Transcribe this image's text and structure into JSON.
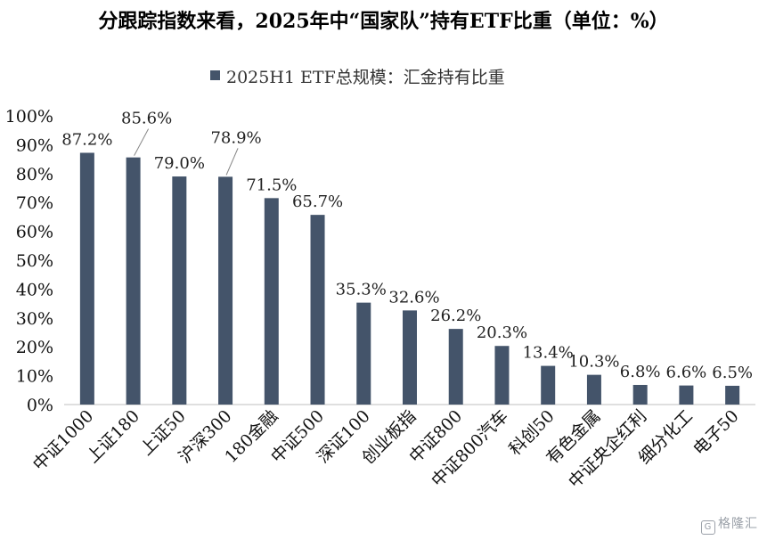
{
  "title": "分跟踪指数来看，2025年中“国家队”持有ETF比重（单位：%）",
  "watermark": "格隆汇",
  "chart_data": {
    "type": "bar",
    "title": "分跟踪指数来看，2025年中“国家队”持有ETF比重（单位：%）",
    "legend": {
      "label": "2025H1 ETF总规模：汇金持有比重",
      "position": "top"
    },
    "categories": [
      "中证1000",
      "上证180",
      "上证50",
      "沪深300",
      "180金融",
      "中证500",
      "深证100",
      "创业板指",
      "中证800",
      "中证800汽车",
      "科创50",
      "有色金属",
      "中证央企红利",
      "细分化工",
      "电子50"
    ],
    "series": [
      {
        "name": "2025H1 ETF总规模：汇金持有比重",
        "values": [
          87.2,
          85.6,
          79.0,
          78.9,
          71.5,
          65.7,
          35.3,
          32.6,
          26.2,
          20.3,
          13.4,
          10.3,
          6.8,
          6.6,
          6.5
        ],
        "labels": [
          "87.2%",
          "85.6%",
          "79.0%",
          "78.9%",
          "71.5%",
          "65.7%",
          "35.3%",
          "32.6%",
          "26.2%",
          "20.3%",
          "13.4%",
          "10.3%",
          "6.8%",
          "6.6%",
          "6.5%"
        ],
        "color": "#44546a"
      }
    ],
    "ylim": [
      0,
      100
    ],
    "yticks": [
      "0%",
      "10%",
      "20%",
      "30%",
      "40%",
      "50%",
      "60%",
      "70%",
      "80%",
      "90%",
      "100%"
    ],
    "grid": false
  }
}
